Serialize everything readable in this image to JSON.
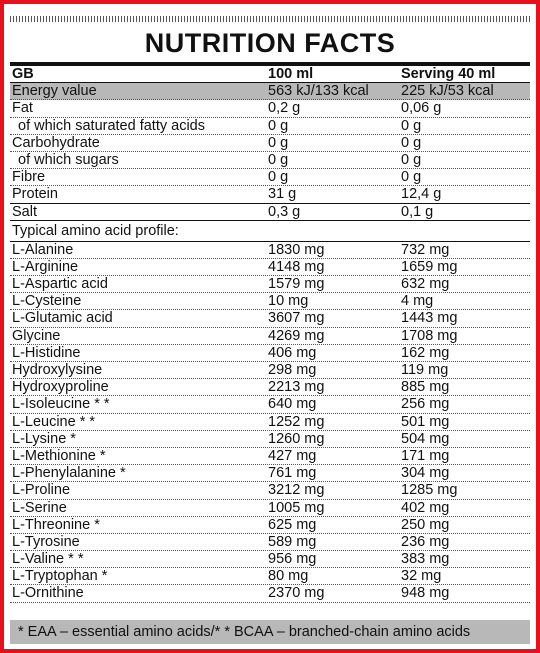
{
  "title": "NUTRITION FACTS",
  "header": {
    "label": "GB",
    "col1": "100 ml",
    "col2": "Serving 40 ml"
  },
  "nutrients": [
    {
      "label": "Energy value",
      "col1": "563 kJ/133 kcal",
      "col2": "225 kJ/53 kcal",
      "style": "gray"
    },
    {
      "label": "Fat",
      "col1": "0,2 g",
      "col2": "0,06 g"
    },
    {
      "label": "of which saturated fatty acids",
      "col1": "0 g",
      "col2": "0 g",
      "indent": true
    },
    {
      "label": "Carbohydrate",
      "col1": "0 g",
      "col2": "0 g"
    },
    {
      "label": "of which sugars",
      "col1": "0 g",
      "col2": "0 g",
      "indent": true
    },
    {
      "label": "Fibre",
      "col1": "0 g",
      "col2": "0 g"
    },
    {
      "label": "Protein",
      "col1": "31 g",
      "col2": "12,4 g",
      "style": "solid"
    },
    {
      "label": "Salt",
      "col1": "0,3 g",
      "col2": "0,1 g",
      "style": "solid"
    }
  ],
  "amino_heading": "Typical amino acid profile:",
  "amino_acids": [
    {
      "label": "L-Alanine",
      "col1": "1830 mg",
      "col2": "732 mg"
    },
    {
      "label": "L-Arginine",
      "col1": "4148 mg",
      "col2": "1659 mg"
    },
    {
      "label": "L-Aspartic acid",
      "col1": "1579 mg",
      "col2": "632 mg"
    },
    {
      "label": "L-Cysteine",
      "col1": "10 mg",
      "col2": "4 mg"
    },
    {
      "label": "L-Glutamic acid",
      "col1": "3607 mg",
      "col2": "1443 mg"
    },
    {
      "label": "Glycine",
      "col1": "4269 mg",
      "col2": "1708 mg"
    },
    {
      "label": "L-Histidine",
      "col1": "406 mg",
      "col2": "162 mg"
    },
    {
      "label": "Hydroxylysine",
      "col1": "298 mg",
      "col2": "119 mg"
    },
    {
      "label": "Hydroxyproline",
      "col1": "2213 mg",
      "col2": "885 mg"
    },
    {
      "label": "L-Isoleucine * *",
      "col1": "640 mg",
      "col2": "256 mg"
    },
    {
      "label": "L-Leucine * *",
      "col1": "1252 mg",
      "col2": "501 mg"
    },
    {
      "label": "L-Lysine *",
      "col1": "1260 mg",
      "col2": "504 mg"
    },
    {
      "label": "L-Methionine *",
      "col1": "427 mg",
      "col2": "171 mg"
    },
    {
      "label": "L-Phenylalanine *",
      "col1": "761 mg",
      "col2": "304 mg"
    },
    {
      "label": "L-Proline",
      "col1": "3212 mg",
      "col2": "1285 mg"
    },
    {
      "label": "L-Serine",
      "col1": "1005 mg",
      "col2": "402 mg"
    },
    {
      "label": "L-Threonine *",
      "col1": "625 mg",
      "col2": "250 mg"
    },
    {
      "label": "L-Tyrosine",
      "col1": "589 mg",
      "col2": "236 mg"
    },
    {
      "label": "L-Valine * *",
      "col1": "956 mg",
      "col2": "383 mg"
    },
    {
      "label": "L-Tryptophan *",
      "col1": "80 mg",
      "col2": "32 mg"
    },
    {
      "label": "L-Ornithine",
      "col1": "2370 mg",
      "col2": "948 mg"
    }
  ],
  "footer": "* EAA – essential amino acids/* * BCAA – branched-chain amino acids",
  "colors": {
    "border": "#e8101a",
    "gray_band": "#b8b8b8",
    "text": "#111111"
  }
}
